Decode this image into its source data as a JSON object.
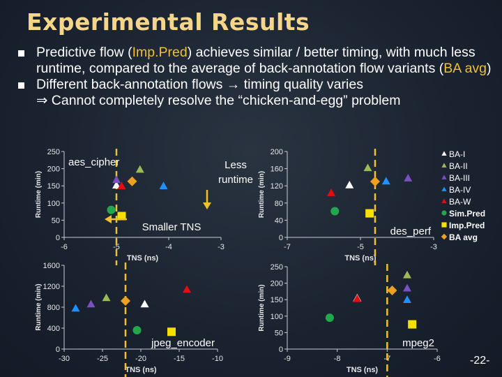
{
  "slide": {
    "title": "Experimental Results",
    "bullet1": {
      "pre": "Predictive flow (",
      "hl1": "Imp.Pred",
      "mid": ") achieves similar / better timing, with much less runtime, compared to the average of back-annotation flow variants (",
      "hl2": "BA avg",
      "post": ")"
    },
    "bullet2": {
      "text1": "Different back-annotation flows ",
      "arrow": "→",
      "text2": " timing quality varies"
    },
    "bullet3": {
      "implies": "⇒",
      "text": " Cannot completely resolve the “chicken-and-egg” problem"
    },
    "page_number": "-22-"
  },
  "legend": [
    {
      "name": "BA-I",
      "shape": "triangle",
      "color": "#ffffff"
    },
    {
      "name": "BA-II",
      "shape": "triangle",
      "color": "#9bbb59"
    },
    {
      "name": "BA-III",
      "shape": "triangle",
      "color": "#7a4fbf"
    },
    {
      "name": "BA-IV",
      "shape": "triangle",
      "color": "#1e90ff"
    },
    {
      "name": "BA-W",
      "shape": "triangle",
      "color": "#e01010"
    },
    {
      "name": "Sim.Pred",
      "shape": "circle",
      "color": "#22a84a"
    },
    {
      "name": "Imp.Pred",
      "shape": "square",
      "color": "#f5e000"
    },
    {
      "name": "BA avg",
      "shape": "diamond",
      "color": "#f0a020"
    }
  ],
  "guide_color": "#f0c030",
  "chart_data": [
    {
      "type": "scatter",
      "title": "aes_cipher",
      "xlabel": "TNS (ns)",
      "ylabel": "Runtime (min)",
      "xlim": [
        -6,
        -3
      ],
      "ylim": [
        0,
        250
      ],
      "xticks": [
        "-6",
        "-5",
        "-4",
        "-3"
      ],
      "yticks": [
        "0",
        "50",
        "100",
        "150",
        "200",
        "250"
      ],
      "guide_x": -5,
      "notes": {
        "less_runtime": "Less\nruntime",
        "smaller_tns": "Smaller TNS"
      },
      "points": [
        {
          "series": "BA-I",
          "x": -5.0,
          "y": 152
        },
        {
          "series": "BA-II",
          "x": -4.55,
          "y": 198
        },
        {
          "series": "BA-III",
          "x": -5.0,
          "y": 168
        },
        {
          "series": "BA-IV",
          "x": -4.1,
          "y": 150
        },
        {
          "series": "BA-W",
          "x": -4.9,
          "y": 150
        },
        {
          "series": "Sim.Pred",
          "x": -5.1,
          "y": 80
        },
        {
          "series": "Imp.Pred",
          "x": -4.9,
          "y": 62
        },
        {
          "series": "BA avg",
          "x": -4.7,
          "y": 163
        }
      ]
    },
    {
      "type": "scatter",
      "title": "des_perf",
      "xlabel": "TNS (ns)",
      "ylabel": "Runtime (min)",
      "xlim": [
        -7,
        -3
      ],
      "ylim": [
        0,
        200
      ],
      "xticks": [
        "-7",
        "-5",
        "-3"
      ],
      "yticks": [
        "0",
        "40",
        "80",
        "120",
        "160",
        "200"
      ],
      "guide_x": -4.6,
      "points": [
        {
          "series": "BA-I",
          "x": -5.3,
          "y": 122
        },
        {
          "series": "BA-II",
          "x": -4.8,
          "y": 162
        },
        {
          "series": "BA-III",
          "x": -3.7,
          "y": 138
        },
        {
          "series": "BA-IV",
          "x": -4.3,
          "y": 131
        },
        {
          "series": "BA-W",
          "x": -5.8,
          "y": 104
        },
        {
          "series": "Sim.Pred",
          "x": -5.7,
          "y": 61
        },
        {
          "series": "Imp.Pred",
          "x": -4.75,
          "y": 56
        },
        {
          "series": "BA avg",
          "x": -4.6,
          "y": 130
        }
      ]
    },
    {
      "type": "scatter",
      "title": "jpeg_encoder",
      "xlabel": "TNS (ns)",
      "ylabel": "Runtime (min)",
      "xlim": [
        -30,
        -10
      ],
      "ylim": [
        0,
        1600
      ],
      "xticks": [
        "-30",
        "-25",
        "-20",
        "-15",
        "-10"
      ],
      "yticks": [
        "0",
        "400",
        "800",
        "1200",
        "1600"
      ],
      "guide_x": -22,
      "points": [
        {
          "series": "BA-I",
          "x": -19.5,
          "y": 860
        },
        {
          "series": "BA-II",
          "x": -24.5,
          "y": 980
        },
        {
          "series": "BA-III",
          "x": -26.5,
          "y": 860
        },
        {
          "series": "BA-IV",
          "x": -28.5,
          "y": 780
        },
        {
          "series": "BA-W",
          "x": -14,
          "y": 1140
        },
        {
          "series": "Sim.Pred",
          "x": -20.5,
          "y": 360
        },
        {
          "series": "Imp.Pred",
          "x": -16,
          "y": 330
        },
        {
          "series": "BA avg",
          "x": -22,
          "y": 920
        }
      ]
    },
    {
      "type": "scatter",
      "title": "mpeg2",
      "xlabel": "TNS (ns)",
      "ylabel": "Runtime (min)",
      "xlim": [
        -9,
        -6
      ],
      "ylim": [
        0,
        250
      ],
      "xticks": [
        "-9",
        "-8",
        "-7",
        "-6"
      ],
      "yticks": [
        "0",
        "50",
        "100",
        "150",
        "200",
        "250"
      ],
      "guide_x": -7,
      "points": [
        {
          "series": "BA-I",
          "x": -7.6,
          "y": 155
        },
        {
          "series": "BA-II",
          "x": -6.6,
          "y": 225
        },
        {
          "series": "BA-III",
          "x": -6.6,
          "y": 185
        },
        {
          "series": "BA-IV",
          "x": -6.6,
          "y": 150
        },
        {
          "series": "BA-W",
          "x": -7.6,
          "y": 153
        },
        {
          "series": "Sim.Pred",
          "x": -8.15,
          "y": 95
        },
        {
          "series": "Imp.Pred",
          "x": -6.5,
          "y": 75
        },
        {
          "series": "BA avg",
          "x": -6.9,
          "y": 178
        }
      ]
    }
  ]
}
